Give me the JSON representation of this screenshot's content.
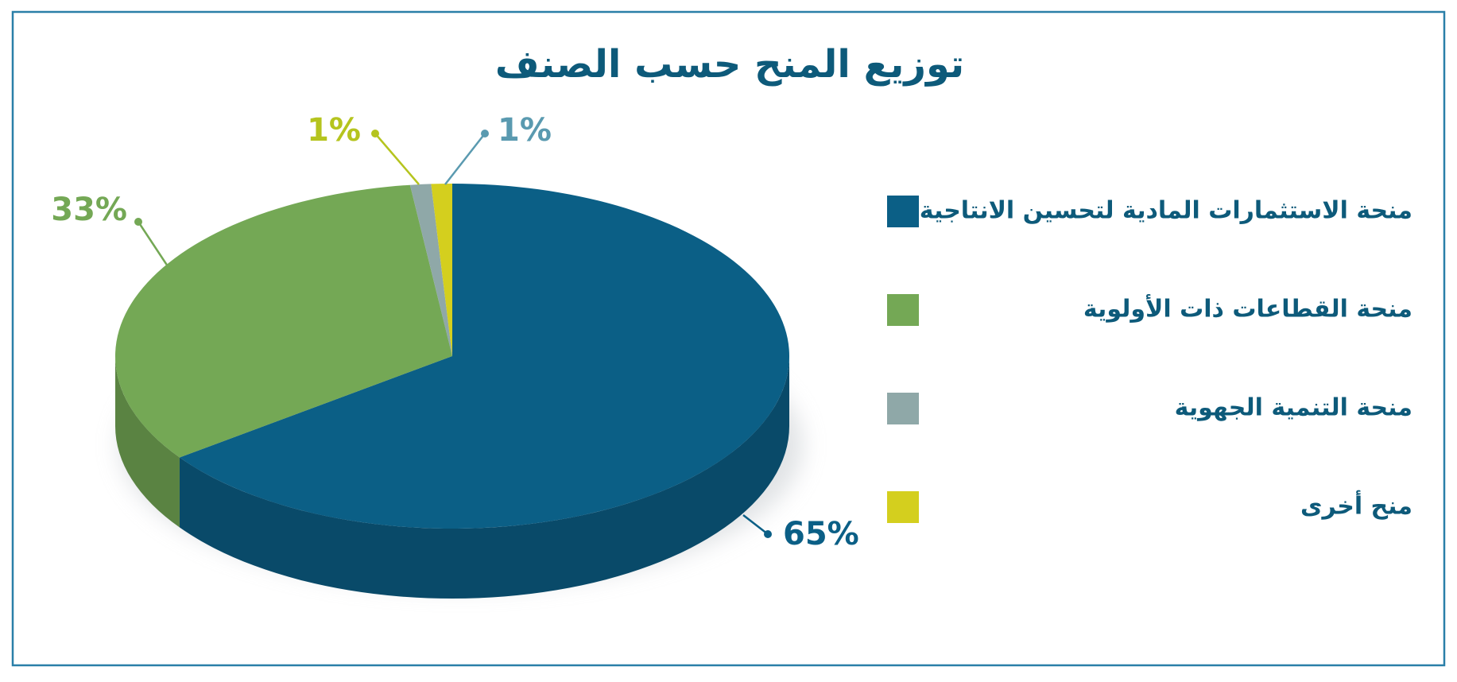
{
  "chart_data": {
    "type": "pie",
    "title": "توزيع المنح حسب الصنف",
    "categories": [
      "منحة الاستثمارات المادية لتحسين الانتاجية",
      "منحة القطاعات ذات الأولوية",
      "منحة التنمية الجهوية",
      "منح أخرى"
    ],
    "values": [
      65,
      33,
      1,
      1
    ],
    "value_labels": [
      "65%",
      "33%",
      "1%",
      "1%"
    ],
    "colors": [
      "#0b5f86",
      "#74a855",
      "#8fa8a8",
      "#d4cf1e"
    ],
    "label_colors": [
      "#0b5f86",
      "#74a855",
      "#5a9ab0",
      "#b5c41e"
    ],
    "legend": "right"
  }
}
